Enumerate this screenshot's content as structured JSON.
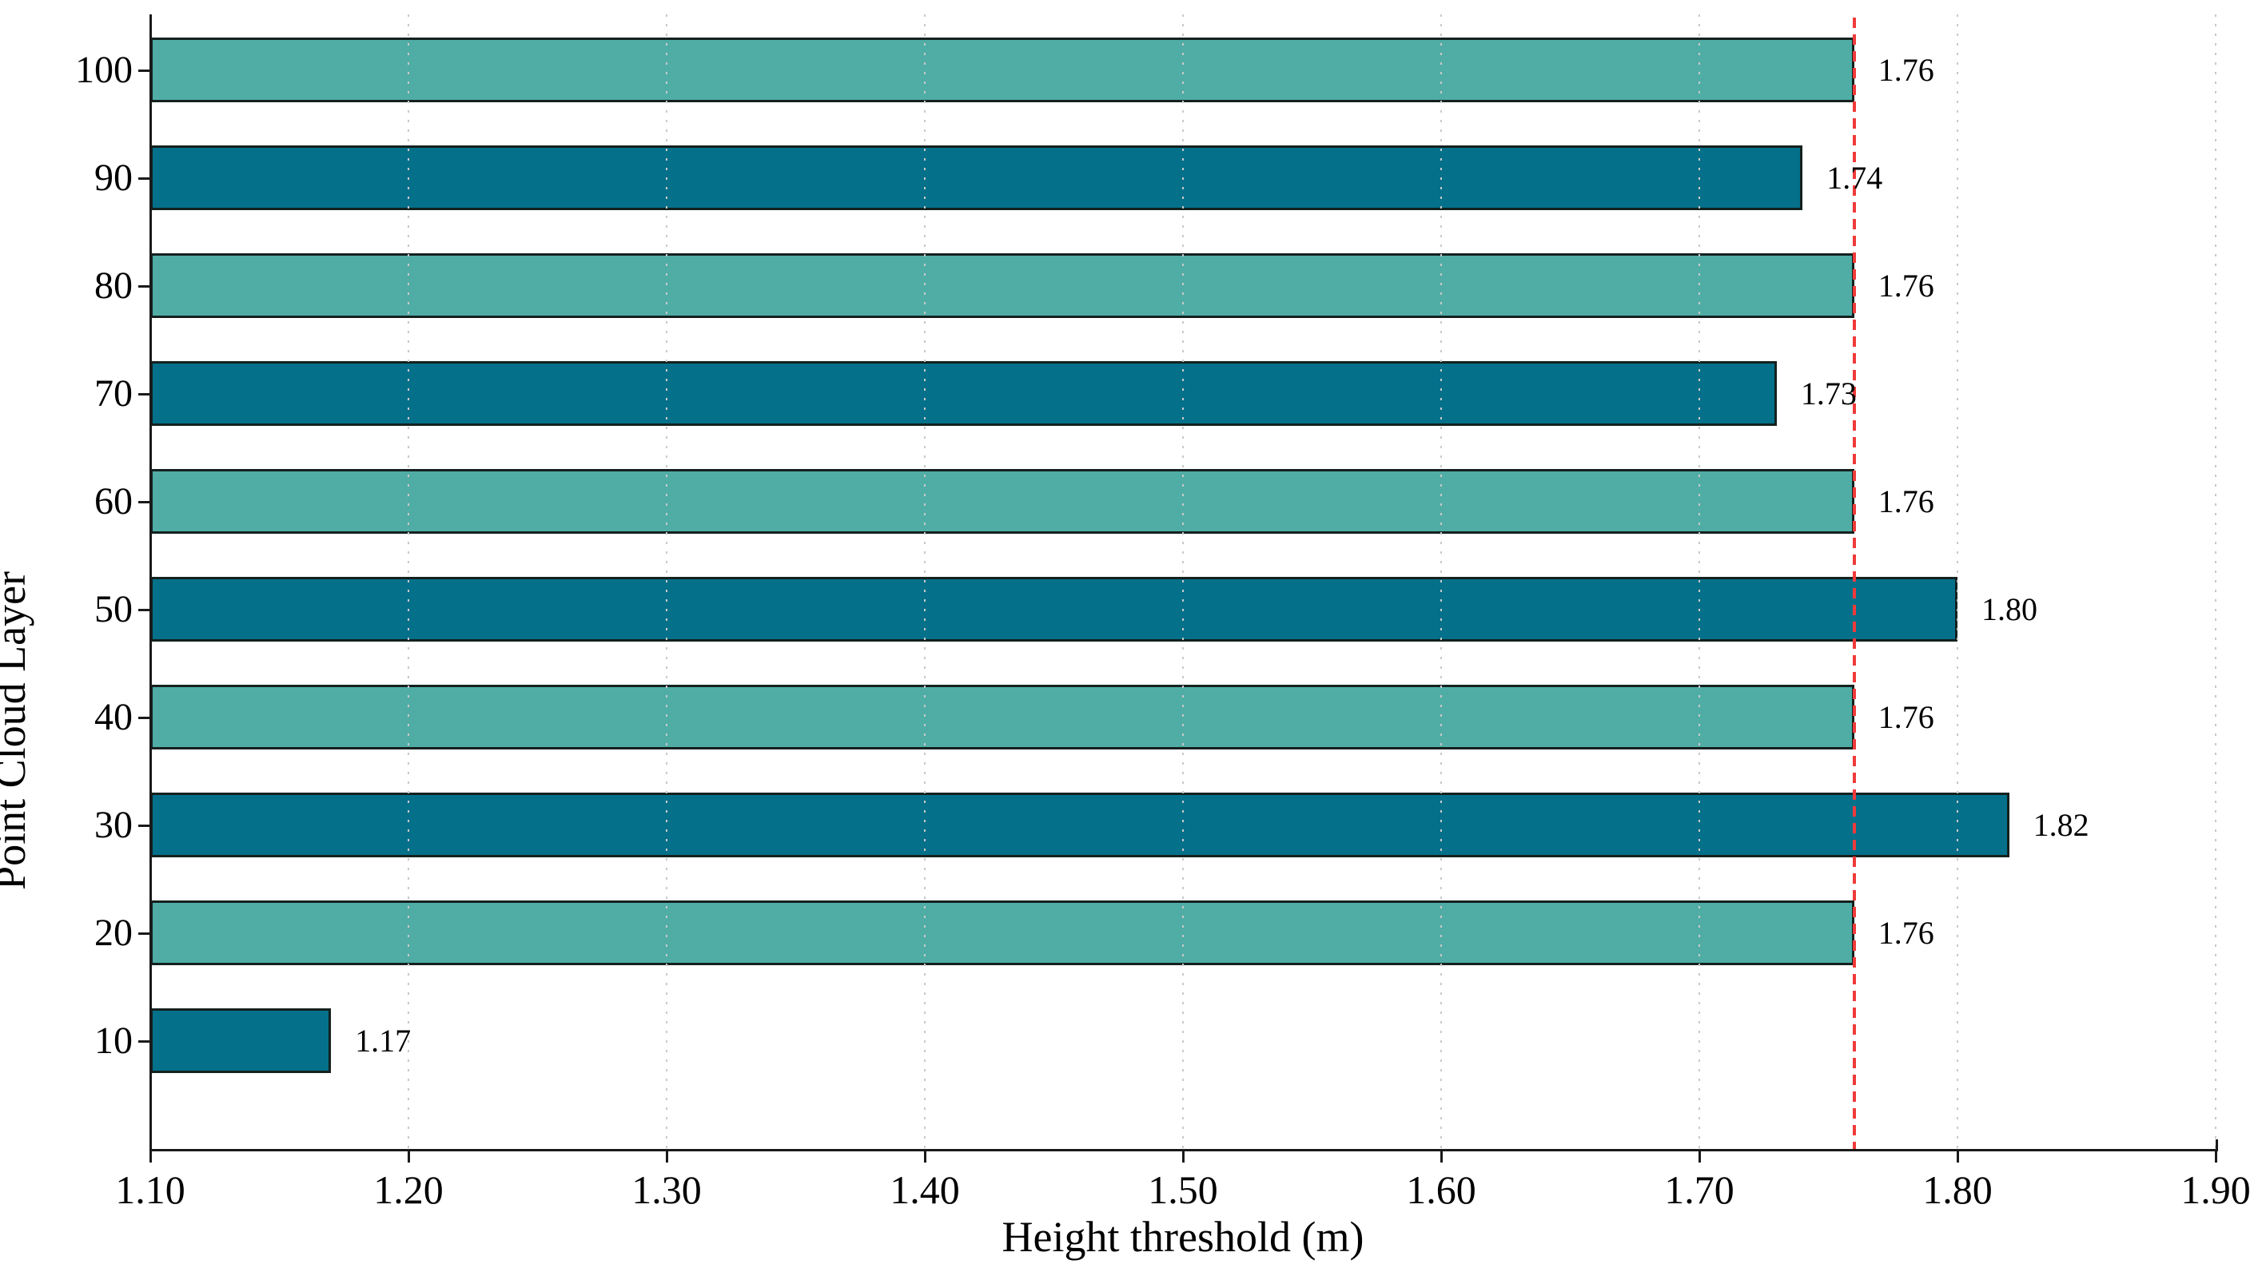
{
  "figure": {
    "background": "#ffffff"
  },
  "chart_data": {
    "type": "bar",
    "orientation": "horizontal",
    "title": "",
    "xlabel": "Height threshold (m)",
    "ylabel": "Point Cloud Layer",
    "categories": [
      "100",
      "90",
      "80",
      "70",
      "60",
      "50",
      "40",
      "30",
      "20",
      "10"
    ],
    "values": [
      1.76,
      1.74,
      1.76,
      1.73,
      1.76,
      1.8,
      1.76,
      1.82,
      1.76,
      1.17
    ],
    "bar_labels": [
      "1.76",
      "1.74",
      "1.76",
      "1.73",
      "1.76",
      "1.80",
      "1.76",
      "1.82",
      "1.76",
      "1.17"
    ],
    "xlim": [
      1.1,
      1.9
    ],
    "x_ticks": [
      {
        "value": 1.1,
        "label": "1.10"
      },
      {
        "value": 1.2,
        "label": "1.20"
      },
      {
        "value": 1.3,
        "label": "1.30"
      },
      {
        "value": 1.4,
        "label": "1.40"
      },
      {
        "value": 1.5,
        "label": "1.50"
      },
      {
        "value": 1.6,
        "label": "1.60"
      },
      {
        "value": 1.7,
        "label": "1.70"
      },
      {
        "value": 1.8,
        "label": "1.80"
      },
      {
        "value": 1.9,
        "label": "1.90"
      }
    ],
    "grid": {
      "axis": "x",
      "style": "dotted",
      "color": "#c9c9c9",
      "on_top": true
    },
    "reference_line": {
      "value": 1.76,
      "style": "dashed",
      "color": "#f03a3a"
    },
    "legend": "none",
    "colors": {
      "bar_light": "#4fada6",
      "bar_dark": "#04708a",
      "bar_edge": "#14211f",
      "axis": "#1a1a1a",
      "text": "#000000"
    },
    "alternating_pattern": "even rows light teal, odd rows dark teal (top row = 100 = light)"
  }
}
